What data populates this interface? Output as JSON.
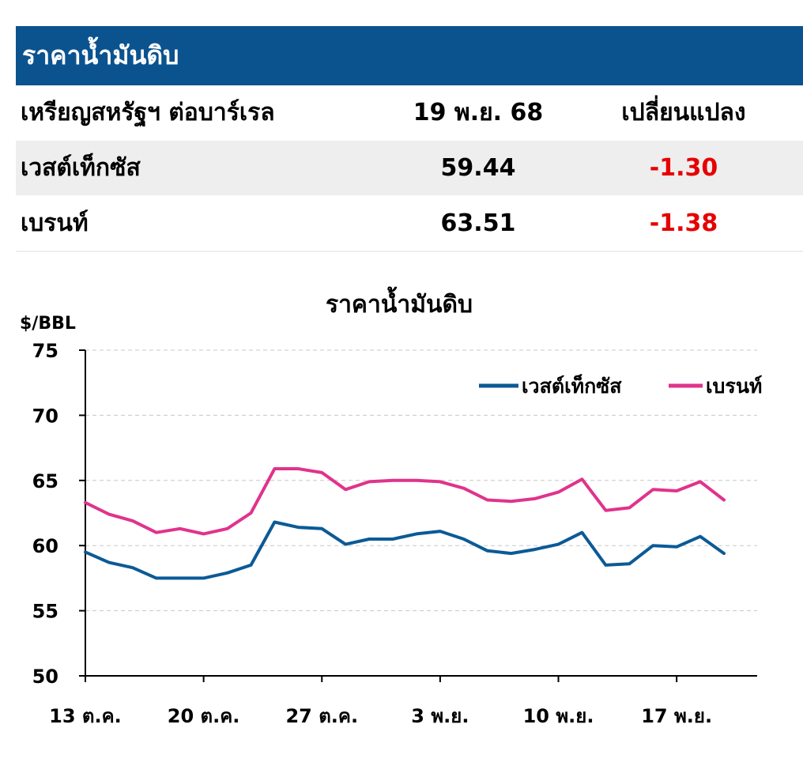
{
  "table": {
    "title": "ราคาน้ำมันดิบ",
    "headers": [
      "เหรียญสหรัฐฯ ต่อบาร์เรล",
      "19 พ.ย. 68",
      "เปลี่ยนแปลง"
    ],
    "rows": [
      {
        "name": "เวสต์เท็กซัส",
        "price": "59.44",
        "change": "-1.30"
      },
      {
        "name": "เบรนท์",
        "price": "63.51",
        "change": "-1.38"
      }
    ],
    "colors": {
      "header_bg": "#0b538f",
      "negative": "#e60000",
      "row_shade": "#eeeeee"
    }
  },
  "chart_data": {
    "type": "line",
    "title": "ราคาน้ำมันดิบ",
    "ylabel": "$/BBL",
    "xlabel": "",
    "ylim": [
      50,
      75
    ],
    "yticks": [
      50,
      55,
      60,
      65,
      70,
      75
    ],
    "xlim": [
      "13 ต.ค.",
      "19 พ.ย."
    ],
    "xticks": [
      "13 ต.ค.",
      "20 ต.ค.",
      "27 ต.ค.",
      "3 พ.ย.",
      "10 พ.ย.",
      "17 พ.ย."
    ],
    "x": [
      "13 ต.ค.",
      "14 ต.ค.",
      "15 ต.ค.",
      "16 ต.ค.",
      "17 ต.ค.",
      "20 ต.ค.",
      "21 ต.ค.",
      "22 ต.ค.",
      "23 ต.ค.",
      "24 ต.ค.",
      "27 ต.ค.",
      "28 ต.ค.",
      "29 ต.ค.",
      "30 ต.ค.",
      "31 ต.ค.",
      "3 พ.ย.",
      "4 พ.ย.",
      "5 พ.ย.",
      "6 พ.ย.",
      "7 พ.ย.",
      "10 พ.ย.",
      "11 พ.ย.",
      "12 พ.ย.",
      "13 พ.ย.",
      "14 พ.ย.",
      "17 พ.ย.",
      "18 พ.ย.",
      "19 พ.ย."
    ],
    "series": [
      {
        "name": "เวสต์เท็กซัส",
        "color": "#0b5a96",
        "values": [
          59.5,
          58.7,
          58.3,
          57.5,
          57.5,
          57.5,
          57.9,
          58.5,
          61.8,
          61.4,
          61.3,
          60.1,
          60.5,
          60.5,
          60.9,
          61.1,
          60.5,
          59.6,
          59.4,
          59.7,
          60.1,
          61.0,
          58.5,
          58.6,
          60.0,
          59.9,
          60.7,
          59.4
        ]
      },
      {
        "name": "เบรนท์",
        "color": "#e0338c",
        "values": [
          63.3,
          62.4,
          61.9,
          61.0,
          61.3,
          60.9,
          61.3,
          62.5,
          65.9,
          65.9,
          65.6,
          64.3,
          64.9,
          65.0,
          65.0,
          64.9,
          64.4,
          63.5,
          63.4,
          63.6,
          64.1,
          65.1,
          62.7,
          62.9,
          64.3,
          64.2,
          64.9,
          63.5
        ]
      }
    ],
    "grid": true,
    "legend": "top-right"
  }
}
